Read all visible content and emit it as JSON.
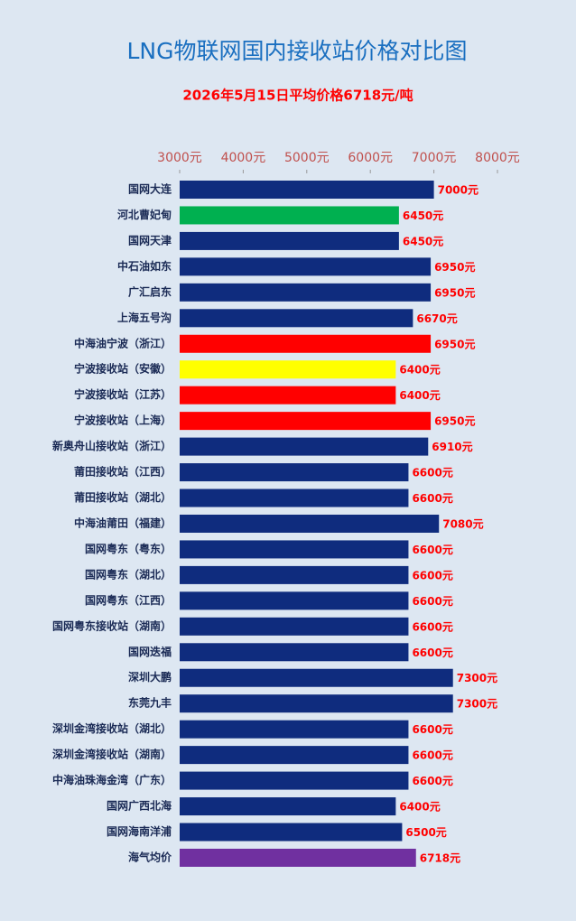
{
  "chart_data": {
    "type": "barh",
    "title": "LNG物联网国内接收站价格对比图",
    "subtitle": "2026年5月15日平均价格6718元/吨",
    "categories": [
      "国网大连",
      "河北曹妃甸",
      "国网天津",
      "中石油如东",
      "广汇启东",
      "上海五号沟",
      "中海油宁波（浙江）",
      "宁波接收站（安徽）",
      "宁波接收站（江苏）",
      "宁波接收站（上海）",
      "新奥舟山接收站（浙江）",
      "莆田接收站（江西）",
      "莆田接收站（湖北）",
      "中海油莆田（福建）",
      "国网粤东（粤东）",
      "国网粤东（湖北）",
      "国网粤东（江西）",
      "国网粤东接收站（湖南）",
      "国网迭福",
      "深圳大鹏",
      "东莞九丰",
      "深圳金湾接收站（湖北）",
      "深圳金湾接收站（湖南）",
      "中海油珠海金湾（广东）",
      "国网广西北海",
      "国网海南洋浦",
      "海气均价"
    ],
    "values": [
      7000,
      6450,
      6450,
      6950,
      6950,
      6670,
      6950,
      6400,
      6400,
      6950,
      6910,
      6600,
      6600,
      7080,
      6600,
      6600,
      6600,
      6600,
      6600,
      7300,
      7300,
      6600,
      6600,
      6600,
      6400,
      6500,
      6718
    ],
    "value_labels": [
      "7000元",
      "6450元",
      "6450元",
      "6950元",
      "6950元",
      "6670元",
      "6950元",
      "6400元",
      "6400元",
      "6950元",
      "6910元",
      "6600元",
      "6600元",
      "7080元",
      "6600元",
      "6600元",
      "6600元",
      "6600元",
      "6600元",
      "7300元",
      "7300元",
      "6600元",
      "6600元",
      "6600元",
      "6400元",
      "6500元",
      "6718元"
    ],
    "colors": [
      "#0f2c7e",
      "#00b050",
      "#0f2c7e",
      "#0f2c7e",
      "#0f2c7e",
      "#0f2c7e",
      "#ff0000",
      "#ffff00",
      "#ff0000",
      "#ff0000",
      "#0f2c7e",
      "#0f2c7e",
      "#0f2c7e",
      "#0f2c7e",
      "#0f2c7e",
      "#0f2c7e",
      "#0f2c7e",
      "#0f2c7e",
      "#0f2c7e",
      "#0f2c7e",
      "#0f2c7e",
      "#0f2c7e",
      "#0f2c7e",
      "#0f2c7e",
      "#0f2c7e",
      "#0f2c7e",
      "#7030a0"
    ],
    "xlim": [
      3000,
      8000
    ],
    "xticks": [
      {
        "value": 3000,
        "label": "3000元"
      },
      {
        "value": 4000,
        "label": "4000元"
      },
      {
        "value": 5000,
        "label": "5000元"
      },
      {
        "value": 6000,
        "label": "6000元"
      },
      {
        "value": 7000,
        "label": "7000元"
      },
      {
        "value": 8000,
        "label": "8000元"
      }
    ]
  }
}
